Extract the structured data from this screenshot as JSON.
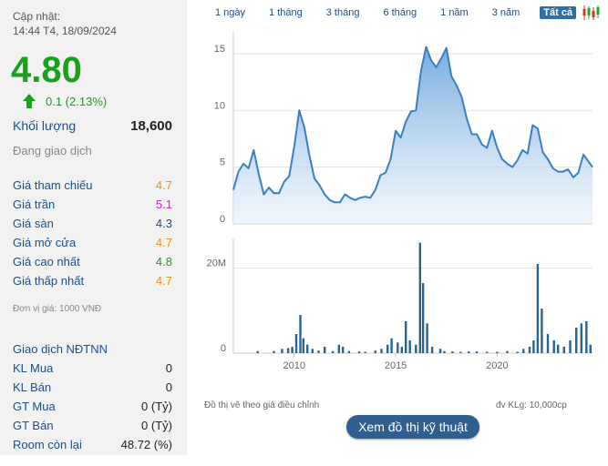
{
  "updated_label": "Cập nhật:",
  "updated_time": "14:44 T4, 18/09/2024",
  "price": "4.80",
  "change": "0.1 (2.13%)",
  "volume_label": "Khối lượng",
  "volume_value": "18,600",
  "status": "Đang giao dịch",
  "price_rows": [
    {
      "label": "Giá tham chiếu",
      "value": "4.7"
    },
    {
      "label": "Giá trần",
      "value": "5.1"
    },
    {
      "label": "Giá sàn",
      "value": "4.3"
    },
    {
      "label": "Giá mở cửa",
      "value": "4.7"
    },
    {
      "label": "Giá cao nhất",
      "value": "4.8"
    },
    {
      "label": "Giá thấp nhất",
      "value": "4.7"
    }
  ],
  "unit_note": "Đơn vị giá: 1000 VNĐ",
  "foreign_title": "Giao dịch NĐTNN",
  "foreign_rows": [
    {
      "label": "KL Mua",
      "value": "0"
    },
    {
      "label": "KL Bán",
      "value": "0"
    },
    {
      "label": "GT Mua",
      "value": "0 (Tỷ)"
    },
    {
      "label": "GT Bán",
      "value": "0 (Tỷ)"
    },
    {
      "label": "Room còn lại",
      "value": "48.72 (%)"
    }
  ],
  "ranges": [
    "1 ngày",
    "1 tháng",
    "3 tháng",
    "6 tháng",
    "1 năm",
    "3 năm",
    "Tất cả"
  ],
  "active_range": "Tất cả",
  "colors": {
    "up": "#1aa01a",
    "ref": "#e5941a",
    "ceiling": "#d020d0",
    "floor": "#1d4e8f",
    "series": "#3a7fc4",
    "bar": "#2b6393"
  },
  "chart_note_left": "Đồ thị vẽ theo giá điều chỉnh",
  "chart_note_right": "đv KLg: 10,000cp",
  "technical_button": "Xem đồ thị kỹ thuật",
  "chart_data": [
    {
      "type": "area",
      "x_ticks": [
        2010,
        2015,
        2020
      ],
      "y_ticks": [
        0,
        5,
        10,
        15
      ],
      "ylim": [
        0,
        17
      ],
      "xlim": [
        2007.0,
        2024.7
      ],
      "grid": true,
      "x": [
        2007.0,
        2007.25,
        2007.5,
        2007.75,
        2008.0,
        2008.25,
        2008.5,
        2008.75,
        2009.0,
        2009.25,
        2009.5,
        2009.75,
        2010.0,
        2010.25,
        2010.5,
        2010.75,
        2011.0,
        2011.25,
        2011.5,
        2011.75,
        2012.0,
        2012.25,
        2012.5,
        2012.75,
        2013.0,
        2013.25,
        2013.5,
        2013.75,
        2014.0,
        2014.25,
        2014.5,
        2014.75,
        2015.0,
        2015.25,
        2015.5,
        2015.75,
        2016.0,
        2016.25,
        2016.5,
        2016.75,
        2017.0,
        2017.25,
        2017.5,
        2017.75,
        2018.0,
        2018.25,
        2018.5,
        2018.75,
        2019.0,
        2019.25,
        2019.5,
        2019.75,
        2020.0,
        2020.25,
        2020.5,
        2020.75,
        2021.0,
        2021.25,
        2021.5,
        2021.75,
        2022.0,
        2022.25,
        2022.5,
        2022.75,
        2023.0,
        2023.25,
        2023.5,
        2023.75,
        2024.0,
        2024.25,
        2024.5,
        2024.7
      ],
      "y": [
        3.0,
        4.6,
        5.3,
        4.9,
        6.5,
        4.4,
        2.6,
        3.2,
        2.7,
        2.7,
        3.7,
        4.2,
        6.8,
        10.0,
        8.5,
        6.0,
        4.0,
        3.4,
        2.6,
        2.1,
        1.9,
        1.9,
        2.6,
        2.3,
        2.1,
        2.3,
        2.4,
        2.3,
        3.0,
        4.3,
        4.5,
        5.7,
        8.2,
        7.6,
        9.0,
        9.9,
        10.0,
        13.5,
        15.6,
        14.4,
        13.8,
        14.6,
        15.5,
        13.0,
        12.2,
        11.2,
        9.3,
        7.9,
        7.9,
        7.0,
        6.7,
        8.2,
        6.7,
        5.7,
        5.3,
        5.0,
        5.6,
        6.5,
        6.2,
        8.7,
        8.4,
        6.3,
        5.7,
        4.9,
        4.6,
        4.6,
        4.8,
        4.1,
        4.5,
        6.1,
        5.5,
        5.0
      ]
    },
    {
      "type": "bar",
      "y_ticks": [
        0,
        20
      ],
      "y_tick_labels": [
        "0",
        "20M"
      ],
      "ylim": [
        0,
        27
      ],
      "xlim": [
        2007.0,
        2024.7
      ],
      "x": [
        2008.2,
        2009.0,
        2009.4,
        2009.7,
        2009.9,
        2010.1,
        2010.3,
        2010.45,
        2010.65,
        2010.9,
        2011.2,
        2011.5,
        2011.9,
        2012.2,
        2012.4,
        2012.7,
        2013.2,
        2013.5,
        2014.0,
        2014.3,
        2014.6,
        2014.8,
        2015.1,
        2015.3,
        2015.5,
        2015.7,
        2016.0,
        2016.2,
        2016.35,
        2016.55,
        2016.8,
        2017.2,
        2017.4,
        2017.8,
        2018.2,
        2018.6,
        2019.0,
        2019.5,
        2020.0,
        2020.5,
        2021.0,
        2021.3,
        2021.6,
        2021.8,
        2022.0,
        2022.2,
        2022.5,
        2022.8,
        2023.0,
        2023.3,
        2023.6,
        2023.9,
        2024.15,
        2024.4,
        2024.6
      ],
      "values": [
        0.5,
        0.5,
        1.0,
        1.2,
        1.5,
        4.5,
        9.0,
        3.5,
        2.0,
        1.0,
        0.6,
        1.5,
        0.5,
        2.0,
        1.5,
        0.5,
        0.4,
        0.3,
        0.6,
        1.0,
        2.0,
        3.5,
        2.5,
        1.5,
        7.5,
        3.0,
        2.0,
        26.0,
        16.5,
        7.0,
        1.5,
        1.0,
        0.5,
        0.4,
        0.3,
        0.4,
        0.4,
        0.3,
        0.3,
        0.5,
        0.3,
        1.0,
        1.5,
        3.0,
        21.0,
        10.5,
        4.5,
        3.0,
        2.0,
        1.5,
        3.0,
        6.0,
        7.0,
        7.5,
        2.0
      ]
    }
  ]
}
